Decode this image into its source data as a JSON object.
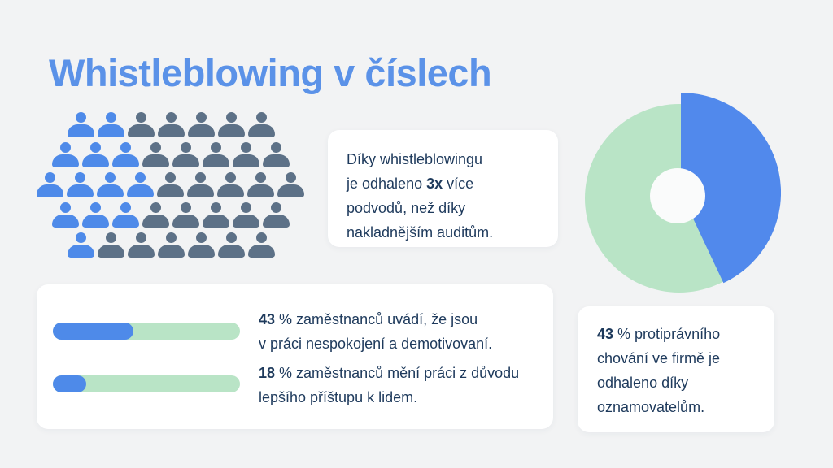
{
  "title": "Whistleblowing v číslech",
  "colors": {
    "page_bg": "#f2f3f4",
    "card_white": "#ffffff",
    "title_blue": "#5b92e8",
    "person_blue": "#4e8ae9",
    "person_gray": "#5d7187",
    "bar_blue": "#4e8ae9",
    "track_green": "#b9e4c6",
    "donut_blue": "#5189ec",
    "donut_green": "#b9e4c6",
    "donut_hole": "#fafbfb",
    "text_navy": "#1e3a5c"
  },
  "people_grid": {
    "rows": [
      {
        "blue": 2,
        "gray": 5,
        "indent": 1
      },
      {
        "blue": 3,
        "gray": 5,
        "indent": 0.5
      },
      {
        "blue": 4,
        "gray": 5,
        "indent": 0
      },
      {
        "blue": 3,
        "gray": 5,
        "indent": 0.5
      },
      {
        "blue": 1,
        "gray": 6,
        "indent": 1
      }
    ]
  },
  "audit_card": {
    "text_before": "Díky whistleblowingu\nje odhaleno ",
    "text_bold": "3x",
    "text_after": " více\npodvodů, než díky\nnakladnějším auditům."
  },
  "stats_card": {
    "bars": [
      {
        "percent": 43,
        "value_bold": "43",
        "label_rest": " % zaměstnanců uvádí, že jsou\nv práci nespokojení a demotivovaní."
      },
      {
        "percent": 18,
        "value_bold": "18",
        "label_rest": " % zaměstnanců mění práci z důvodu\nlepšího příštupu k lidem."
      }
    ]
  },
  "reporter_card": {
    "text_bold": "43",
    "text_rest": " % protiprávního\nchování ve firmě je\nodhaleno díky\noznamovatelům."
  },
  "chart_data": [
    {
      "type": "pie",
      "style": "donut",
      "values": [
        43,
        57
      ],
      "unit": "%",
      "segment_color_keys": [
        "donut_blue",
        "donut_green"
      ],
      "start_angle_deg": 0,
      "direction": "clockwise",
      "legend": "none"
    },
    {
      "type": "bar",
      "orientation": "horizontal",
      "values": [
        43,
        18
      ],
      "unit": "%",
      "xlim": [
        0,
        100
      ],
      "labels": [
        "43 % zaměstnanců uvádí, že jsou v práci nespokojení a demotivovaní.",
        "18 % zaměstnanců mění práci z důvodu lepšího příštupu k lidem."
      ]
    },
    {
      "type": "pictogram",
      "total": 39,
      "highlighted": 13,
      "rows_layout": [
        7,
        8,
        9,
        8,
        7
      ]
    }
  ]
}
